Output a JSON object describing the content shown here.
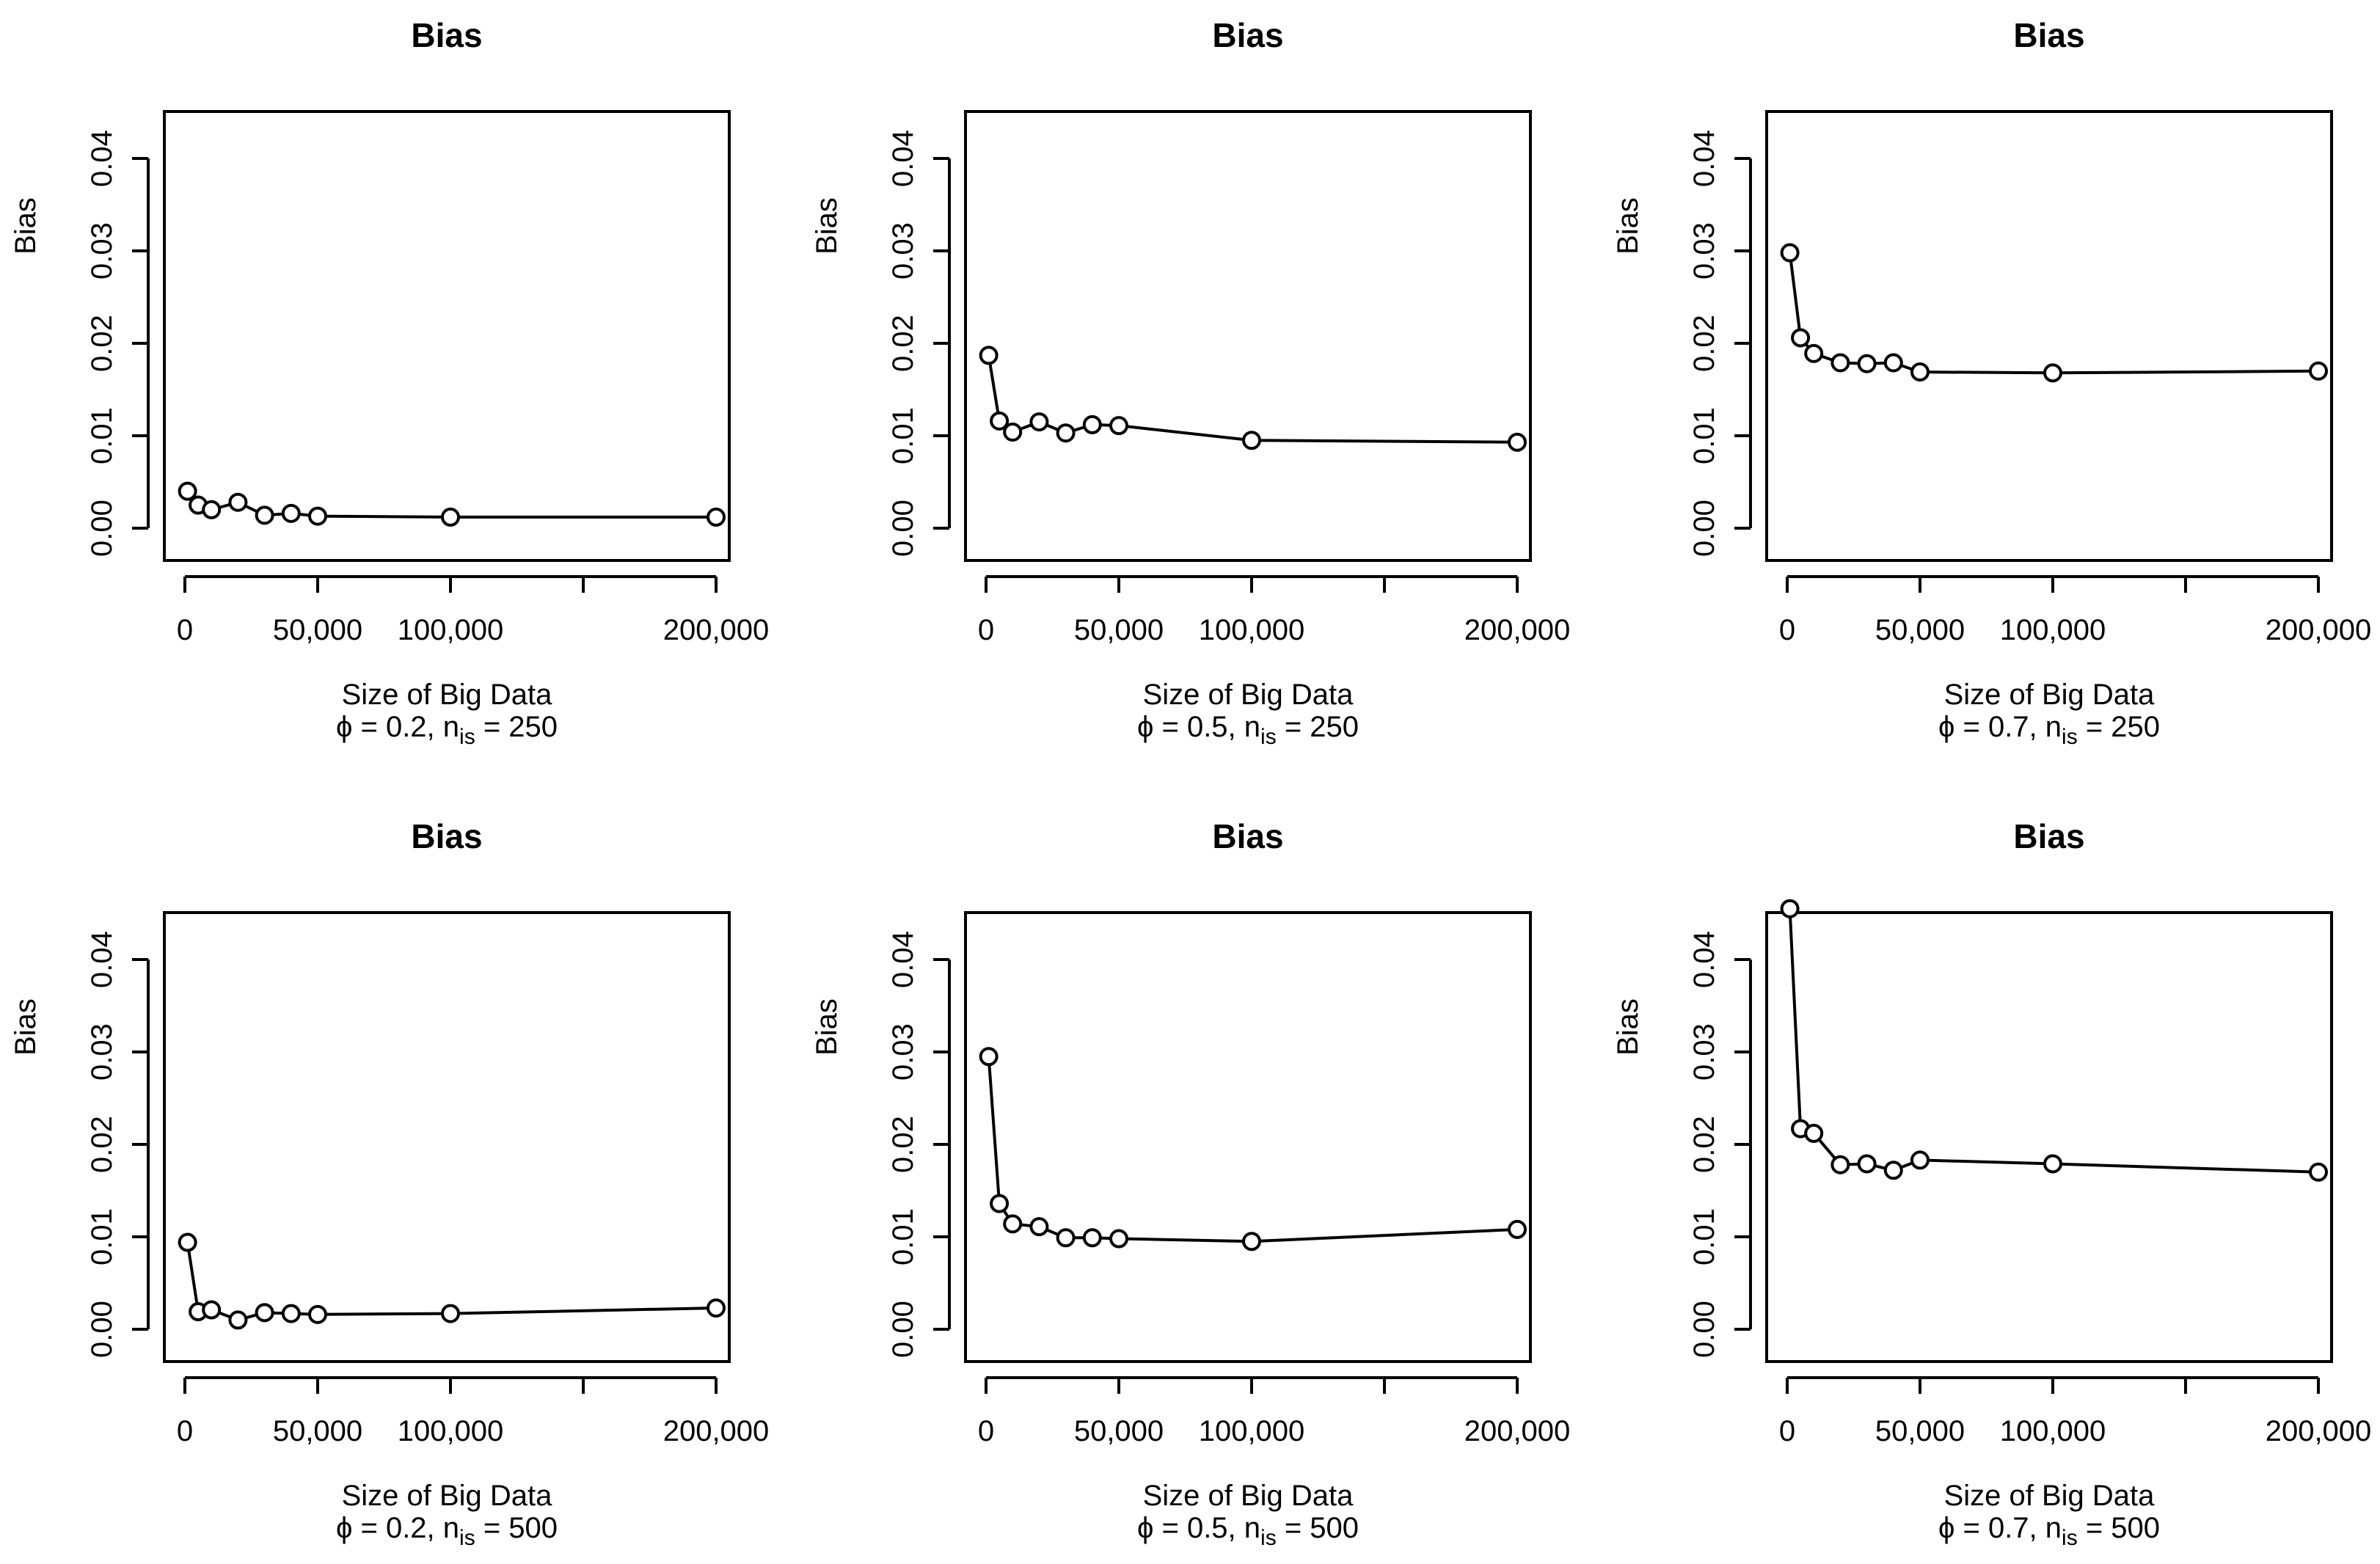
{
  "chart_data": [
    {
      "type": "line",
      "title": "Bias",
      "xlabel": "Size of Big Data",
      "ylabel": "Bias",
      "subtitle": {
        "phi_symbol": "ϕ",
        "phi_value": " = 0.2, ",
        "n_base": "n",
        "n_sub": "is",
        "n_value": " = 250"
      },
      "x": [
        1000,
        5000,
        10000,
        20000,
        30000,
        40000,
        50000,
        100000,
        200000
      ],
      "values": [
        0.004,
        0.0025,
        0.002,
        0.0028,
        0.0014,
        0.0016,
        0.0013,
        0.0012,
        0.0012
      ],
      "xlim": [
        0,
        200000
      ],
      "ylim": [
        0,
        0.04
      ],
      "xticks": [
        0,
        50000,
        100000,
        150000,
        200000
      ],
      "xtick_labels": [
        "0",
        "50,000",
        "100,000",
        "",
        "200,000"
      ],
      "yticks": [
        0,
        0.01,
        0.02,
        0.03,
        0.04
      ],
      "ytick_labels": [
        "0.00",
        "0.01",
        "0.02",
        "0.03",
        "0.04"
      ]
    },
    {
      "type": "line",
      "title": "Bias",
      "xlabel": "Size of Big Data",
      "ylabel": "Bias",
      "subtitle": {
        "phi_symbol": "ϕ",
        "phi_value": " = 0.5, ",
        "n_base": "n",
        "n_sub": "is",
        "n_value": " = 250"
      },
      "x": [
        1000,
        5000,
        10000,
        20000,
        30000,
        40000,
        50000,
        100000,
        200000
      ],
      "values": [
        0.0187,
        0.0116,
        0.0104,
        0.0115,
        0.0103,
        0.0112,
        0.0111,
        0.0095,
        0.0093
      ],
      "xlim": [
        0,
        200000
      ],
      "ylim": [
        0,
        0.04
      ],
      "xticks": [
        0,
        50000,
        100000,
        150000,
        200000
      ],
      "xtick_labels": [
        "0",
        "50,000",
        "100,000",
        "",
        "200,000"
      ],
      "yticks": [
        0,
        0.01,
        0.02,
        0.03,
        0.04
      ],
      "ytick_labels": [
        "0.00",
        "0.01",
        "0.02",
        "0.03",
        "0.04"
      ]
    },
    {
      "type": "line",
      "title": "Bias",
      "xlabel": "Size of Big Data",
      "ylabel": "Bias",
      "subtitle": {
        "phi_symbol": "ϕ",
        "phi_value": " = 0.7, ",
        "n_base": "n",
        "n_sub": "is",
        "n_value": " = 250"
      },
      "x": [
        1000,
        5000,
        10000,
        20000,
        30000,
        40000,
        50000,
        100000,
        200000
      ],
      "values": [
        0.0298,
        0.0206,
        0.0189,
        0.0179,
        0.0178,
        0.0179,
        0.0169,
        0.0168,
        0.017
      ],
      "xlim": [
        0,
        200000
      ],
      "ylim": [
        0,
        0.04
      ],
      "xticks": [
        0,
        50000,
        100000,
        150000,
        200000
      ],
      "xtick_labels": [
        "0",
        "50,000",
        "100,000",
        "",
        "200,000"
      ],
      "yticks": [
        0,
        0.01,
        0.02,
        0.03,
        0.04
      ],
      "ytick_labels": [
        "0.00",
        "0.01",
        "0.02",
        "0.03",
        "0.04"
      ]
    },
    {
      "type": "line",
      "title": "Bias",
      "xlabel": "Size of Big Data",
      "ylabel": "Bias",
      "subtitle": {
        "phi_symbol": "ϕ",
        "phi_value": " = 0.2, ",
        "n_base": "n",
        "n_sub": "is",
        "n_value": " = 500"
      },
      "x": [
        1000,
        5000,
        10000,
        20000,
        30000,
        40000,
        50000,
        100000,
        200000
      ],
      "values": [
        0.0094,
        0.0019,
        0.0021,
        0.001,
        0.0018,
        0.0017,
        0.0016,
        0.0017,
        0.0023
      ],
      "xlim": [
        0,
        200000
      ],
      "ylim": [
        0,
        0.04
      ],
      "xticks": [
        0,
        50000,
        100000,
        150000,
        200000
      ],
      "xtick_labels": [
        "0",
        "50,000",
        "100,000",
        "",
        "200,000"
      ],
      "yticks": [
        0,
        0.01,
        0.02,
        0.03,
        0.04
      ],
      "ytick_labels": [
        "0.00",
        "0.01",
        "0.02",
        "0.03",
        "0.04"
      ]
    },
    {
      "type": "line",
      "title": "Bias",
      "xlabel": "Size of Big Data",
      "ylabel": "Bias",
      "subtitle": {
        "phi_symbol": "ϕ",
        "phi_value": " = 0.5, ",
        "n_base": "n",
        "n_sub": "is",
        "n_value": " = 500"
      },
      "x": [
        1000,
        5000,
        10000,
        20000,
        30000,
        40000,
        50000,
        100000,
        200000
      ],
      "values": [
        0.0295,
        0.0136,
        0.0114,
        0.0111,
        0.0099,
        0.0099,
        0.0098,
        0.0095,
        0.0108
      ],
      "xlim": [
        0,
        200000
      ],
      "ylim": [
        0,
        0.04
      ],
      "xticks": [
        0,
        50000,
        100000,
        150000,
        200000
      ],
      "xtick_labels": [
        "0",
        "50,000",
        "100,000",
        "",
        "200,000"
      ],
      "yticks": [
        0,
        0.01,
        0.02,
        0.03,
        0.04
      ],
      "ytick_labels": [
        "0.00",
        "0.01",
        "0.02",
        "0.03",
        "0.04"
      ]
    },
    {
      "type": "line",
      "title": "Bias",
      "xlabel": "Size of Big Data",
      "ylabel": "Bias",
      "subtitle": {
        "phi_symbol": "ϕ",
        "phi_value": " = 0.7, ",
        "n_base": "n",
        "n_sub": "is",
        "n_value": " = 500"
      },
      "x": [
        1000,
        5000,
        10000,
        20000,
        30000,
        40000,
        50000,
        100000,
        200000
      ],
      "values": [
        0.0455,
        0.0217,
        0.0212,
        0.0178,
        0.0179,
        0.0172,
        0.0183,
        0.0179,
        0.017
      ],
      "xlim": [
        0,
        200000
      ],
      "ylim": [
        0,
        0.04
      ],
      "xticks": [
        0,
        50000,
        100000,
        150000,
        200000
      ],
      "xtick_labels": [
        "0",
        "50,000",
        "100,000",
        "",
        "200,000"
      ],
      "yticks": [
        0,
        0.01,
        0.02,
        0.03,
        0.04
      ],
      "ytick_labels": [
        "0.00",
        "0.01",
        "0.02",
        "0.03",
        "0.04"
      ]
    }
  ]
}
